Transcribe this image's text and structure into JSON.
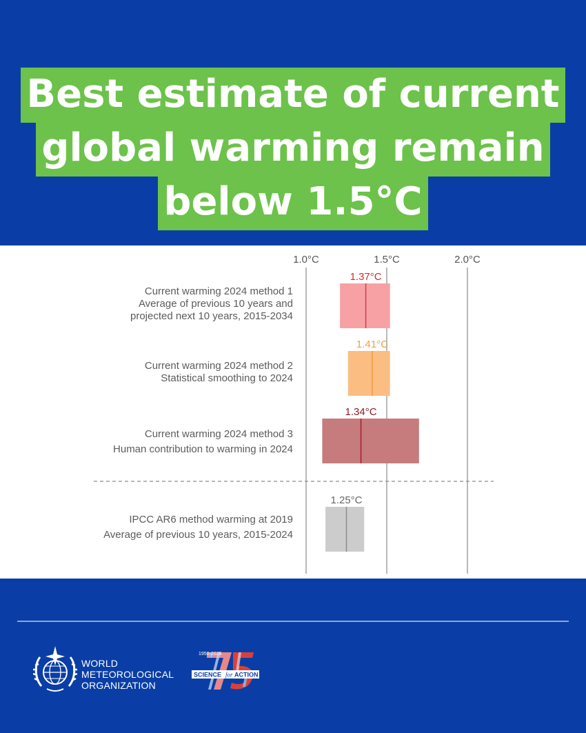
{
  "header": {
    "title_lines": [
      "Best estimate of current",
      "global warming remain",
      "below 1.5°C"
    ]
  },
  "colors": {
    "background": "#0a3ea6",
    "title_highlight": "#6cc24a",
    "method1": "#f7a1a5",
    "method1_line": "#d14047",
    "method2": "#fbbd82",
    "method2_line": "#ee9a3e",
    "method3": "#c67b7d",
    "method3_line": "#a11f28",
    "ipcc": "#cccccc",
    "ipcc_line": "#8a8a8a"
  },
  "chart_data": {
    "type": "range-bar",
    "x_axis": {
      "ticks": [
        "1.0°C",
        "1.5°C",
        "2.0°C"
      ],
      "tick_values": [
        1.0,
        1.5,
        2.0
      ],
      "range": [
        1.0,
        2.0
      ]
    },
    "rows": [
      {
        "label_lines": [
          "Current warming 2024 method 1",
          "Average of previous 10 years and",
          "projected next 10 years, 2015-2034"
        ],
        "best": 1.37,
        "low": 1.21,
        "high": 1.52,
        "value_label": "1.37°C",
        "fill": "#f7a1a5",
        "line": "#d14047",
        "label_color": "#d8282f"
      },
      {
        "label_lines": [
          "Current warming 2024 method 2",
          "Statistical smoothing to 2024"
        ],
        "best": 1.41,
        "low": 1.26,
        "high": 1.52,
        "value_label": "1.41°C",
        "fill": "#fbbd82",
        "line": "#ee9a3e",
        "label_color": "#f0a040"
      },
      {
        "label_lines": [
          "Current warming 2024 method 3",
          "Human contribution to warming in 2024"
        ],
        "best": 1.34,
        "low": 1.1,
        "high": 1.7,
        "value_label": "1.34°C",
        "fill": "#c67b7d",
        "line": "#a11f28",
        "label_color": "#8e1b22"
      },
      {
        "label_lines": [
          "IPCC AR6 method warming at 2019",
          "Average of previous 10 years, 2015-2024"
        ],
        "best": 1.25,
        "low": 1.12,
        "high": 1.36,
        "value_label": "1.25°C",
        "fill": "#cccccc",
        "line": "#8a8a8a",
        "label_color": "#666666"
      }
    ]
  },
  "footer": {
    "org_lines": [
      "WORLD",
      "METEOROLOGICAL",
      "ORGANIZATION"
    ],
    "anniversary": {
      "years": "1950-2025",
      "slogan_a": "SCIENCE",
      "slogan_b": "for",
      "slogan_c": "ACTION",
      "number": "75"
    }
  }
}
